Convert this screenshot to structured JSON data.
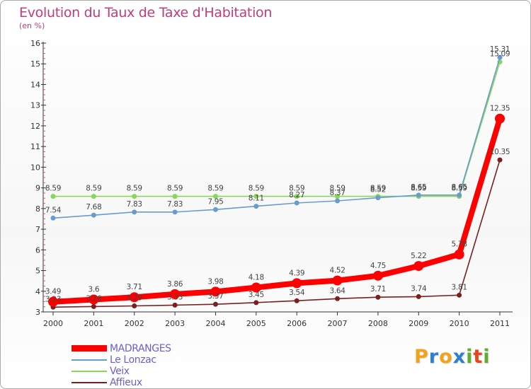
{
  "title": "Evolution du Taux de Taxe d'Habitation",
  "subtitle": "(en %)",
  "logo": {
    "text": "Proxiti",
    "colors": [
      "#f2a21b",
      "#2f7fd0",
      "#f2a21b",
      "#2f7fd0",
      "#5fae2e",
      "#e8451f",
      "#5fae2e"
    ]
  },
  "chart_data": {
    "type": "line",
    "x": [
      "2000",
      "2001",
      "2002",
      "2003",
      "2004",
      "2005",
      "2006",
      "2007",
      "2008",
      "2009",
      "2010",
      "2011"
    ],
    "ylim": [
      3,
      16
    ],
    "yticks": [
      3,
      4,
      5,
      6,
      7,
      8,
      9,
      10,
      11,
      12,
      13,
      14,
      15,
      16
    ],
    "grid": false,
    "legend_position": "bottom-left",
    "series": [
      {
        "name": "Affieux",
        "color": "#7a1f1f",
        "values": [
          3.23,
          3.26,
          3.29,
          3.33,
          3.37,
          3.45,
          3.54,
          3.64,
          3.71,
          3.74,
          3.81,
          10.35
        ],
        "labels": [
          "3.23",
          "3.26",
          "3.29",
          "3.33",
          "3.37",
          "3.45",
          "3.54",
          "3.64",
          "3.71",
          "3.74",
          "3.81",
          "10.35"
        ]
      },
      {
        "name": "Veix",
        "color": "#88d65a",
        "values": [
          8.59,
          8.59,
          8.59,
          8.59,
          8.59,
          8.59,
          8.59,
          8.59,
          8.59,
          8.59,
          8.59,
          15.09
        ],
        "labels": [
          "8.59",
          "8.59",
          "8.59",
          "8.59",
          "8.59",
          "8.59",
          "8.59",
          "8.59",
          "8.59",
          "8.59",
          "8.59",
          "15.09"
        ]
      },
      {
        "name": "Le Lonzac",
        "color": "#6a9bcf",
        "values": [
          7.54,
          7.68,
          7.83,
          7.83,
          7.95,
          8.11,
          8.27,
          8.37,
          8.52,
          8.65,
          8.65,
          15.31
        ],
        "labels": [
          "7.54",
          "7.68",
          "7.83",
          "7.83",
          "7.95",
          "8.11",
          "8.27",
          "8.37",
          "8.52",
          "8.65",
          "8.65",
          "15.31"
        ]
      },
      {
        "name": "MADRANGES",
        "color": "#ff0000",
        "values": [
          3.49,
          3.6,
          3.71,
          3.86,
          3.98,
          4.18,
          4.39,
          4.52,
          4.75,
          5.22,
          5.78,
          12.35
        ],
        "labels": [
          "3.49",
          "3.6",
          "3.71",
          "3.86",
          "3.98",
          "4.18",
          "4.39",
          "4.52",
          "4.75",
          "5.22",
          "5.78",
          "12.35"
        ]
      }
    ]
  },
  "legend": [
    {
      "label": "MADRANGES",
      "color": "#ff0000",
      "bold": true
    },
    {
      "label": "Le Lonzac",
      "color": "#6a9bcf",
      "bold": false
    },
    {
      "label": "Veix",
      "color": "#88d65a",
      "bold": false
    },
    {
      "label": "Affieux",
      "color": "#7a1f1f",
      "bold": false
    }
  ]
}
